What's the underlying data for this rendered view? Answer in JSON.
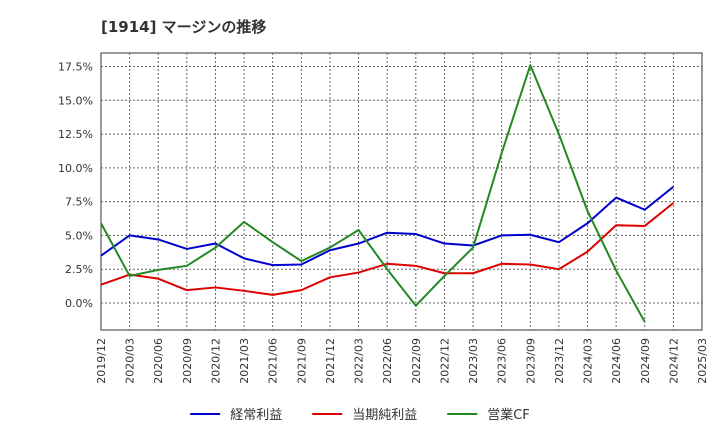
{
  "chart_data": {
    "type": "line",
    "title": "[1914]  マージンの推移",
    "x": [
      "2019/12",
      "2020/03",
      "2020/06",
      "2020/09",
      "2020/12",
      "2021/03",
      "2021/06",
      "2021/09",
      "2021/12",
      "2022/03",
      "2022/06",
      "2022/09",
      "2022/12",
      "2023/03",
      "2023/06",
      "2023/09",
      "2023/12",
      "2024/03",
      "2024/06",
      "2024/09",
      "2024/12",
      "2025/03"
    ],
    "yticks": [
      "0.0%",
      "2.5%",
      "5.0%",
      "7.5%",
      "10.0%",
      "12.5%",
      "15.0%",
      "17.5%"
    ],
    "ylim": [
      -2.0,
      18.5
    ],
    "grid": true,
    "legend_position": "bottom",
    "colors": {
      "経常利益": "#0000cc",
      "当期純利益": "#dd0000",
      "営業CF": "#228822"
    },
    "series": [
      {
        "name": "経常利益",
        "values": [
          3.5,
          5.0,
          4.7,
          4.0,
          4.4,
          3.3,
          2.8,
          2.85,
          3.9,
          4.4,
          5.2,
          5.1,
          4.4,
          4.25,
          5.0,
          5.05,
          4.5,
          5.9,
          7.8,
          6.9,
          8.6,
          null
        ]
      },
      {
        "name": "当期純利益",
        "values": [
          1.35,
          2.1,
          1.8,
          0.95,
          1.15,
          0.9,
          0.6,
          0.95,
          1.9,
          2.25,
          2.9,
          2.75,
          2.2,
          2.2,
          2.9,
          2.85,
          2.5,
          3.8,
          5.75,
          5.7,
          7.4,
          null
        ]
      },
      {
        "name": "営業CF",
        "values": [
          5.9,
          2.0,
          2.45,
          2.75,
          4.1,
          6.0,
          4.5,
          3.1,
          4.1,
          5.4,
          2.5,
          -0.2,
          2.0,
          4.1,
          11.1,
          17.6,
          12.5,
          6.8,
          2.4,
          -1.4,
          null,
          null
        ]
      }
    ]
  }
}
